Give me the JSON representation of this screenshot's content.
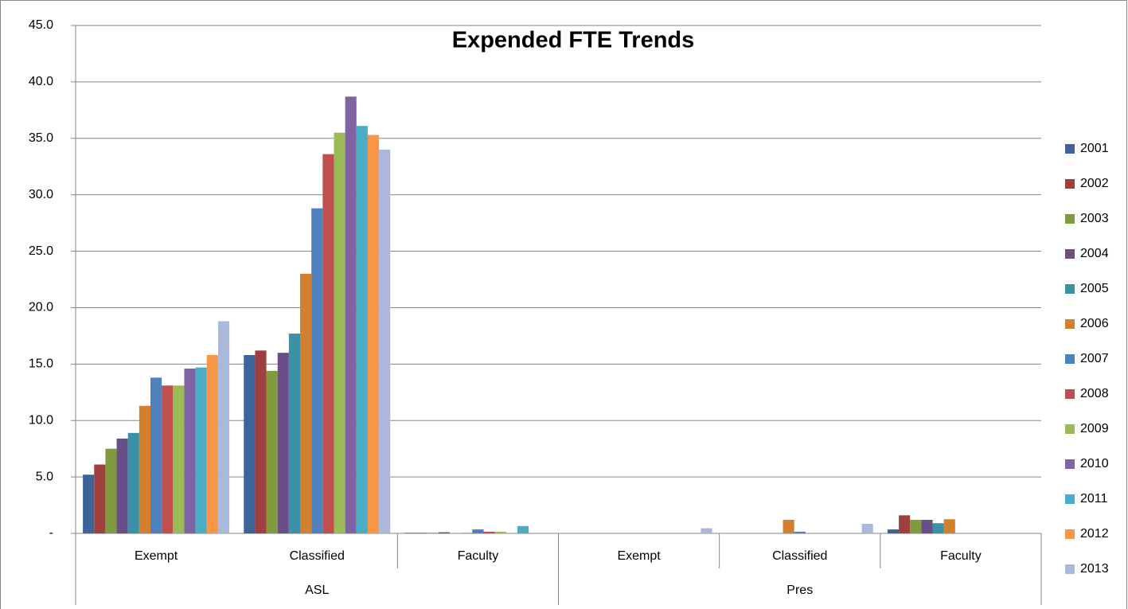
{
  "chart_data": {
    "type": "bar",
    "title": "Expended FTE Trends",
    "groups": [
      {
        "name": "ASL",
        "categories": [
          "Exempt",
          "Classified",
          "Faculty"
        ]
      },
      {
        "name": "Pres",
        "categories": [
          "Exempt",
          "Classified",
          "Faculty"
        ]
      }
    ],
    "series": [
      {
        "name": "2001",
        "color": "#3C6499",
        "values": [
          5.2,
          15.8,
          0.05,
          0,
          0,
          0.35
        ]
      },
      {
        "name": "2002",
        "color": "#A0403E",
        "values": [
          6.1,
          16.2,
          0.05,
          0,
          0,
          1.6
        ]
      },
      {
        "name": "2003",
        "color": "#7F9B3D",
        "values": [
          7.5,
          14.4,
          0.05,
          0,
          0,
          1.2
        ]
      },
      {
        "name": "2004",
        "color": "#6A4E8A",
        "values": [
          8.4,
          16.0,
          0.1,
          0,
          0,
          1.2
        ]
      },
      {
        "name": "2005",
        "color": "#3A91A8",
        "values": [
          8.9,
          17.7,
          0,
          0,
          0,
          0.9
        ]
      },
      {
        "name": "2006",
        "color": "#D27F2E",
        "values": [
          11.3,
          23.0,
          0.05,
          0,
          1.2,
          1.25
        ]
      },
      {
        "name": "2007",
        "color": "#4F81BD",
        "values": [
          13.8,
          28.8,
          0.35,
          0,
          0.15,
          0
        ]
      },
      {
        "name": "2008",
        "color": "#C0504D",
        "values": [
          13.1,
          33.6,
          0.15,
          0,
          0,
          0
        ]
      },
      {
        "name": "2009",
        "color": "#9BBB59",
        "values": [
          13.1,
          35.5,
          0.15,
          0,
          0,
          0
        ]
      },
      {
        "name": "2010",
        "color": "#8064A2",
        "values": [
          14.6,
          38.7,
          0,
          0,
          0,
          0
        ]
      },
      {
        "name": "2011",
        "color": "#4BACC6",
        "values": [
          14.7,
          36.1,
          0.65,
          0,
          0,
          0
        ]
      },
      {
        "name": "2012",
        "color": "#F79646",
        "values": [
          15.8,
          35.3,
          0,
          0,
          0,
          0
        ]
      },
      {
        "name": "2013",
        "color": "#AAB9D9",
        "values": [
          18.8,
          34.0,
          0,
          0.45,
          0.85,
          0
        ]
      }
    ],
    "ylim": [
      0,
      45
    ],
    "yticks": [
      {
        "value": 0,
        "label": "-"
      },
      {
        "value": 5,
        "label": "5.0"
      },
      {
        "value": 10,
        "label": "10.0"
      },
      {
        "value": 15,
        "label": "15.0"
      },
      {
        "value": 20,
        "label": "20.0"
      },
      {
        "value": 25,
        "label": "25.0"
      },
      {
        "value": 30,
        "label": "30.0"
      },
      {
        "value": 35,
        "label": "35.0"
      },
      {
        "value": 40,
        "label": "40.0"
      },
      {
        "value": 45,
        "label": "45.0"
      }
    ],
    "grid": true,
    "legend": "right"
  }
}
